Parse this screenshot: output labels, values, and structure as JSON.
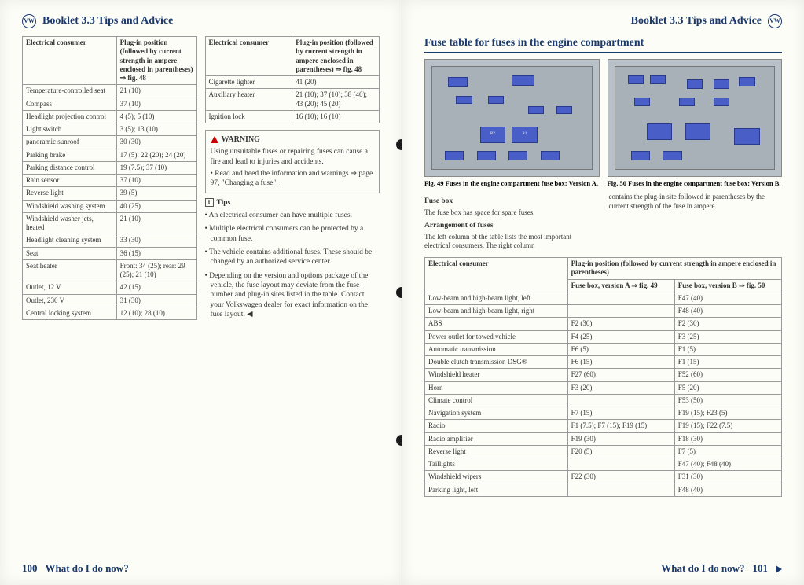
{
  "header": {
    "booklet": "Booklet 3.3  Tips and Advice",
    "logo": "VW"
  },
  "left_table1": {
    "head_consumer": "Electrical consumer",
    "head_plugin": "Plug-in position (followed by current strength in ampere enclosed in parentheses) ⇒ fig. 48",
    "rows": [
      [
        "Temperature-controlled seat",
        "21 (10)"
      ],
      [
        "Compass",
        "37 (10)"
      ],
      [
        "Headlight projection control",
        "4 (5); 5 (10)"
      ],
      [
        "Light switch",
        "3 (5); 13 (10)"
      ],
      [
        "panoramic sunroof",
        "30 (30)"
      ],
      [
        "Parking brake",
        "17 (5); 22 (20); 24 (20)"
      ],
      [
        "Parking distance control",
        "19 (7.5); 37 (10)"
      ],
      [
        "Rain sensor",
        "37 (10)"
      ],
      [
        "Reverse light",
        "39 (5)"
      ],
      [
        "Windshield washing system",
        "40 (25)"
      ],
      [
        "Windshield washer jets, heated",
        "21 (10)"
      ],
      [
        "Headlight cleaning system",
        "33 (30)"
      ],
      [
        "Seat",
        "36 (15)"
      ],
      [
        "Seat heater",
        "Front: 34 (25); rear: 29 (25); 21 (10)"
      ],
      [
        "Outlet, 12 V",
        "42 (15)"
      ],
      [
        "Outlet, 230 V",
        "31 (30)"
      ],
      [
        "Central locking system",
        "12 (10); 28 (10)"
      ]
    ]
  },
  "left_table2": {
    "head_consumer": "Electrical consumer",
    "head_plugin": "Plug-in position (followed by current strength in ampere enclosed in parentheses) ⇒ fig. 48",
    "rows": [
      [
        "Cigarette lighter",
        "41 (20)"
      ],
      [
        "Auxiliary heater",
        "21 (10); 37 (10); 38 (40); 43 (20); 45 (20)"
      ],
      [
        "Ignition lock",
        "16 (10); 16 (10)"
      ]
    ]
  },
  "warning": {
    "title": "WARNING",
    "body": "Using unsuitable fuses or repairing fuses can cause a fire and lead to injuries and accidents.",
    "bullet": "•  Read and heed the information and warnings ⇒ page 97, \"Changing a fuse\"."
  },
  "tips": {
    "title": "Tips",
    "items": [
      "•  An electrical consumer can have multiple fuses.",
      "•  Multiple electrical consumers can be protected by a common fuse.",
      "•  The vehicle contains additional fuses. These should be changed by an authorized service center.",
      "•  Depending on the version and options package of the vehicle, the fuse layout may deviate from the fuse number and plug-in sites listed in the table. Contact your Volkswagen dealer for exact information on the fuse layout. ◀"
    ]
  },
  "right": {
    "section_title": "Fuse table for fuses in the engine compartment",
    "fig49": "Fig. 49  Fuses in the engine compartment fuse box: Version A.",
    "fig50": "Fig. 50  Fuses in the engine compartment fuse box: Version B.",
    "fusebox_head": "Fuse box",
    "fusebox_text": "The fuse box has space for spare fuses.",
    "arrange_head": "Arrangement of fuses",
    "arrange_text": "The left column of the table lists the most important electrical consumers. The right column",
    "right_col_text": "contains the plug-in site followed in parentheses by the current strength of the fuse in ampere.",
    "table": {
      "head_consumer": "Electrical consumer",
      "head_plugin": "Plug-in position (followed by current strength in ampere enclosed in parentheses)",
      "head_a": "Fuse box, version A ⇒ fig. 49",
      "head_b": "Fuse box, version B ⇒ fig. 50",
      "rows": [
        [
          "Low-beam and high-beam light, left",
          "",
          "F47 (40)"
        ],
        [
          "Low-beam and high-beam light, right",
          "",
          "F48 (40)"
        ],
        [
          "ABS",
          "F2 (30)",
          "F2 (30)"
        ],
        [
          "Power outlet for towed vehicle",
          "F4 (25)",
          "F3 (25)"
        ],
        [
          "Automatic transmission",
          "F6 (5)",
          "F1 (5)"
        ],
        [
          "Double clutch transmission DSG®",
          "F6 (15)",
          "F1 (15)"
        ],
        [
          "Windshield heater",
          "F27 (60)",
          "F52 (60)"
        ],
        [
          "Horn",
          "F3 (20)",
          "F5 (20)"
        ],
        [
          "Climate control",
          "",
          "F53 (50)"
        ],
        [
          "Navigation system",
          "F7 (15)",
          "F19 (15); F23 (5)"
        ],
        [
          "Radio",
          "F1 (7.5); F7 (15); F19 (15)",
          "F19 (15); F22 (7.5)"
        ],
        [
          "Radio amplifier",
          "F19 (30)",
          "F18 (30)"
        ],
        [
          "Reverse light",
          "F20 (5)",
          "F7 (5)"
        ],
        [
          "Taillights",
          "",
          "F47 (40); F48 (40)"
        ],
        [
          "Windshield wipers",
          "F22 (30)",
          "F31 (30)"
        ],
        [
          "Parking light, left",
          "",
          "F48 (40)"
        ]
      ]
    }
  },
  "footer": {
    "left_num": "100",
    "right_num": "101",
    "text": "What do I do now?"
  }
}
